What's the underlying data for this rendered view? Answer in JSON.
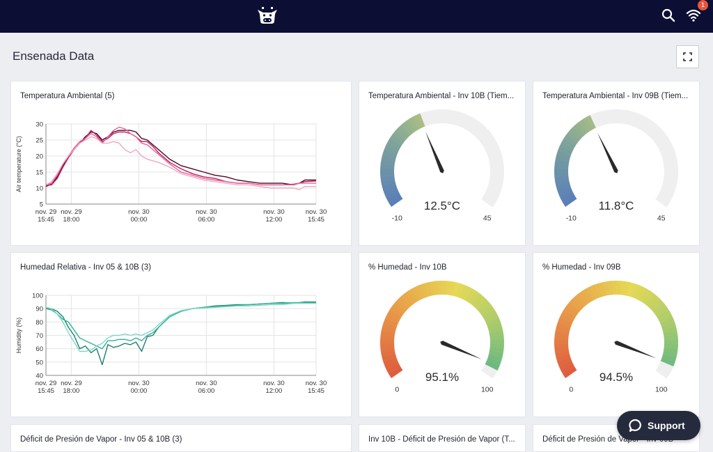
{
  "header": {
    "notification_count": "1",
    "logo_icon": "cow-icon",
    "search_icon": "search-icon",
    "wifi_icon": "wifi-icon"
  },
  "page": {
    "title": "Ensenada Data",
    "fullscreen_icon": "fullscreen-icon"
  },
  "cards": {
    "temp_chart": {
      "title": "Temperatura Ambiental (5)"
    },
    "temp_10b": {
      "title": "Temperatura Ambiental - Inv 10B (Tiem..."
    },
    "temp_09b": {
      "title": "Temperatura Ambiental - Inv 09B (Tiem..."
    },
    "hum_chart": {
      "title": "Humedad Relativa - Inv 05 & 10B (3)"
    },
    "hum_10b": {
      "title": "% Humedad - Inv 10B"
    },
    "hum_09b": {
      "title": "% Humedad - Inv 09B"
    },
    "vpd_chart": {
      "title": "Déficit de Presión de Vapor - Inv 05 & 10B (3)"
    },
    "vpd_10b": {
      "title": "Inv 10B - Déficit de Presión de Vapor (T..."
    },
    "vpd_09b": {
      "title": "Déficit de Presión de Vapor - Inv 09B"
    }
  },
  "gauges": {
    "temp_10b": {
      "value": 12.5,
      "display": "12.5°C",
      "min": -10,
      "max": 45,
      "min_label": "-10",
      "max_label": "45"
    },
    "temp_09b": {
      "value": 11.8,
      "display": "11.8°C",
      "min": -10,
      "max": 45,
      "min_label": "-10",
      "max_label": "45"
    },
    "hum_10b": {
      "value": 95.1,
      "display": "95.1%",
      "min": 0,
      "max": 100,
      "min_label": "0",
      "max_label": "100"
    },
    "hum_09b": {
      "value": 94.5,
      "display": "94.5%",
      "min": 0,
      "max": 100,
      "min_label": "0",
      "max_label": "100"
    }
  },
  "support": {
    "label": "Support"
  },
  "chart_data": [
    {
      "type": "line",
      "title": "Temperatura Ambiental (5)",
      "xlabel": "",
      "ylabel": "Air temperature (°C)",
      "ylim": [
        5,
        30
      ],
      "yticks": [
        5,
        10,
        15,
        20,
        25,
        30
      ],
      "xlim": [
        0,
        24
      ],
      "xticks": [
        {
          "x": 0,
          "line1": "nov. 29",
          "line2": "15:45"
        },
        {
          "x": 2.25,
          "line1": "nov. 29",
          "line2": "18:00"
        },
        {
          "x": 8.25,
          "line1": "nov. 30",
          "line2": "00:00"
        },
        {
          "x": 14.25,
          "line1": "nov. 30",
          "line2": "06:00"
        },
        {
          "x": 20.25,
          "line1": "nov. 30",
          "line2": "12:00"
        },
        {
          "x": 24,
          "line1": "nov. 30",
          "line2": "15:45"
        }
      ],
      "series": [
        {
          "color": "#4a0a24",
          "x": [
            0,
            0.5,
            1,
            1.5,
            2,
            2.5,
            3,
            3.5,
            4,
            4.5,
            5,
            5.5,
            6,
            6.5,
            7,
            7.5,
            8,
            8.5,
            9,
            9.5,
            10,
            11,
            12,
            13,
            14,
            15,
            16,
            17,
            18,
            19,
            20,
            21,
            22,
            22.5,
            23,
            24
          ],
          "y": [
            10.5,
            11.2,
            13.5,
            17,
            20,
            22,
            24,
            26,
            27.5,
            27,
            25,
            26,
            27.5,
            28,
            28,
            28,
            27.5,
            25.5,
            25,
            23.5,
            22,
            19,
            17,
            16,
            15,
            14,
            13.5,
            12.5,
            12,
            11.5,
            11.5,
            11.5,
            11,
            11.5,
            12.5,
            12.5
          ]
        },
        {
          "color": "#c21d5c",
          "x": [
            0,
            0.5,
            1,
            1.5,
            2,
            2.5,
            3,
            3.5,
            4,
            4.5,
            5,
            5.5,
            6,
            6.5,
            7,
            7.5,
            8,
            8.5,
            9,
            9.5,
            10,
            11,
            12,
            13,
            14,
            15,
            16,
            17,
            18,
            19,
            20,
            21,
            22,
            22.5,
            23,
            24
          ],
          "y": [
            10.8,
            11,
            13,
            16.5,
            19.5,
            22,
            24,
            25.5,
            28,
            26.5,
            24.5,
            25.5,
            27,
            27.5,
            27.5,
            27,
            26,
            24.5,
            24.5,
            23,
            21,
            18,
            16,
            14.5,
            13.5,
            13,
            12,
            11.5,
            11.5,
            11,
            11,
            11,
            11.2,
            11.5,
            12,
            12.2
          ]
        },
        {
          "color": "#e3659a",
          "x": [
            0,
            0.5,
            1,
            1.5,
            2,
            2.5,
            3,
            3.5,
            4,
            4.5,
            5,
            5.5,
            6,
            6.5,
            7,
            7.5,
            8,
            8.5,
            9,
            9.5,
            10,
            11,
            12,
            13,
            14,
            15,
            16,
            17,
            18,
            19,
            20,
            21,
            22,
            22.5,
            23,
            24
          ],
          "y": [
            11,
            11.5,
            14,
            17.5,
            20,
            22.5,
            24.5,
            25.5,
            27,
            26,
            24,
            26,
            28,
            29,
            28.5,
            27,
            26,
            24,
            23.5,
            22,
            20.5,
            17.5,
            15,
            14,
            13,
            12.5,
            12,
            11.5,
            11.5,
            11,
            11,
            11,
            11,
            11.5,
            11.5,
            11.5
          ]
        },
        {
          "color": "#eea7c3",
          "x": [
            0,
            0.5,
            1,
            1.5,
            2,
            2.5,
            3,
            3.5,
            4,
            4.5,
            5,
            5.5,
            6,
            6.5,
            7,
            7.5,
            8,
            8.5,
            9,
            9.5,
            10,
            11,
            12,
            13,
            14,
            15,
            16,
            17,
            18,
            19,
            20,
            21,
            22,
            22.5,
            23,
            24
          ],
          "y": [
            11,
            12,
            14.5,
            17.5,
            20,
            22,
            24,
            25,
            26,
            25.5,
            24,
            24,
            24.5,
            24,
            22,
            21,
            22,
            20,
            19,
            18.5,
            18,
            16.5,
            14.5,
            13.5,
            12.5,
            12,
            11.5,
            11,
            11,
            10.5,
            10,
            10,
            10,
            9.5,
            10.5,
            10.5
          ]
        }
      ]
    },
    {
      "type": "line",
      "title": "Humedad Relativa - Inv 05 & 10B (3)",
      "xlabel": "",
      "ylabel": "Humidity (%)",
      "ylim": [
        40,
        100
      ],
      "yticks": [
        40,
        50,
        60,
        70,
        80,
        90,
        100
      ],
      "xlim": [
        0,
        24
      ],
      "xticks": [
        {
          "x": 0,
          "line1": "nov. 29",
          "line2": "15:45"
        },
        {
          "x": 2.25,
          "line1": "nov. 29",
          "line2": "18:00"
        },
        {
          "x": 8.25,
          "line1": "nov. 30",
          "line2": "00:00"
        },
        {
          "x": 14.25,
          "line1": "nov. 30",
          "line2": "06:00"
        },
        {
          "x": 20.25,
          "line1": "nov. 30",
          "line2": "12:00"
        },
        {
          "x": 24,
          "line1": "nov. 30",
          "line2": "15:45"
        }
      ],
      "series": [
        {
          "color": "#1c7f6e",
          "x": [
            0,
            0.5,
            1,
            1.5,
            2,
            2.5,
            3,
            3.5,
            4,
            4.5,
            5,
            5.5,
            6,
            6.5,
            7,
            7.5,
            8,
            8.5,
            9,
            9.5,
            10,
            11,
            12,
            13,
            14,
            15,
            16,
            17,
            18,
            19,
            20,
            21,
            22,
            23,
            24
          ],
          "y": [
            90,
            90,
            88,
            84,
            76,
            70,
            60,
            62,
            57,
            60,
            48,
            63,
            61,
            62,
            64,
            63,
            65,
            58,
            69,
            70,
            76,
            84,
            88,
            90,
            91,
            92,
            92.5,
            93,
            93,
            93.5,
            94,
            94.5,
            94,
            95,
            95
          ]
        },
        {
          "color": "#2fb39b",
          "x": [
            0,
            0.5,
            1,
            1.5,
            2,
            2.5,
            3,
            3.5,
            4,
            4.5,
            5,
            5.5,
            6,
            6.5,
            7,
            7.5,
            8,
            8.5,
            9,
            9.5,
            10,
            11,
            12,
            13,
            14,
            15,
            16,
            17,
            18,
            19,
            20,
            21,
            22,
            23,
            24
          ],
          "y": [
            90,
            89,
            86,
            82,
            80,
            74,
            68,
            66,
            64,
            62,
            60,
            66,
            66,
            67,
            67,
            66,
            68,
            66,
            70,
            72,
            76,
            84,
            88,
            90,
            91,
            91.5,
            92,
            92.5,
            93,
            93.5,
            94,
            94,
            94.5,
            94.5,
            94.5
          ]
        },
        {
          "color": "#7ed6c4",
          "x": [
            0,
            0.5,
            1,
            1.5,
            2,
            2.5,
            3,
            3.5,
            4,
            4.5,
            5,
            5.5,
            6,
            6.5,
            7,
            7.5,
            8,
            8.5,
            9,
            9.5,
            10,
            11,
            12,
            13,
            14,
            15,
            16,
            17,
            18,
            19,
            20,
            21,
            22,
            23,
            24
          ],
          "y": [
            91,
            90,
            86,
            80,
            72,
            65,
            58,
            58,
            59,
            62,
            64,
            68,
            70,
            70,
            71,
            70,
            71,
            70,
            72,
            74,
            78,
            85,
            88.5,
            90,
            90.5,
            91,
            91.5,
            92,
            92,
            92.5,
            93,
            93,
            94,
            94,
            94
          ]
        }
      ]
    }
  ]
}
